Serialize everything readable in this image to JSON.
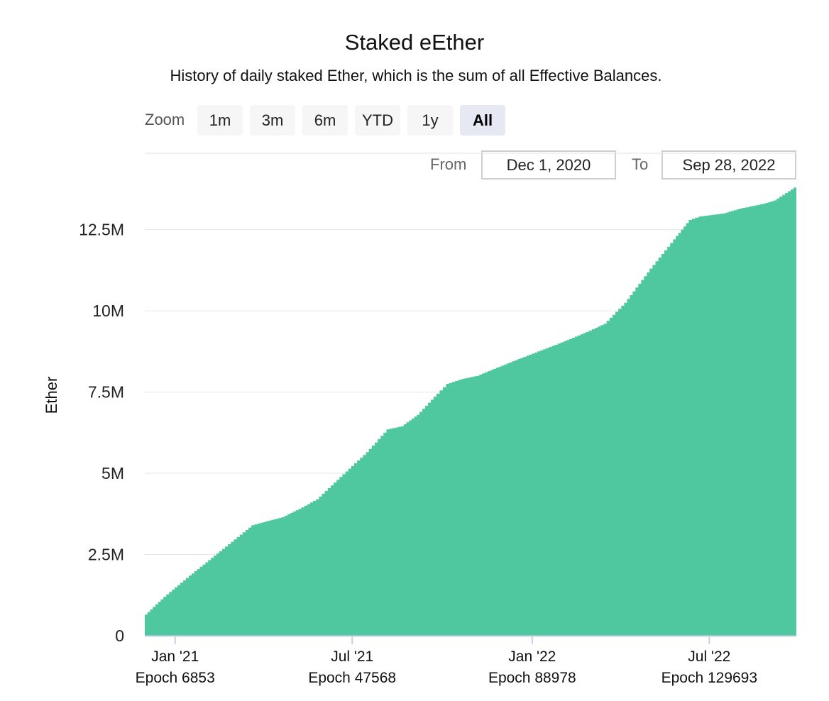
{
  "chart_data": {
    "type": "area",
    "title": "Staked eEther",
    "subtitle": "History of daily staked Ether, which is the sum of all Effective Balances.",
    "ylabel": "Ether",
    "xlabel": "",
    "ylim": [
      0,
      15200000
    ],
    "y_ticks": [
      {
        "value": 0,
        "label": "0"
      },
      {
        "value": 2500000,
        "label": "2.5M"
      },
      {
        "value": 5000000,
        "label": "5M"
      },
      {
        "value": 7500000,
        "label": "7.5M"
      },
      {
        "value": 10000000,
        "label": "10M"
      },
      {
        "value": 12500000,
        "label": "12.5M"
      }
    ],
    "x_range": [
      "2020-12-01",
      "2022-09-28"
    ],
    "x_ticks": [
      {
        "date": "2021-01-01",
        "label": "Jan '21",
        "epoch": "Epoch 6853"
      },
      {
        "date": "2021-07-01",
        "label": "Jul '21",
        "epoch": "Epoch 47568"
      },
      {
        "date": "2022-01-01",
        "label": "Jan '22",
        "epoch": "Epoch 88978"
      },
      {
        "date": "2022-07-01",
        "label": "Jul '22",
        "epoch": "Epoch 129693"
      }
    ],
    "grid": true,
    "color": "#4fc8a0",
    "series": [
      {
        "name": "",
        "points": [
          [
            "2020-12-01",
            650000
          ],
          [
            "2020-12-20",
            1200000
          ],
          [
            "2021-01-15",
            1850000
          ],
          [
            "2021-02-15",
            2600000
          ],
          [
            "2021-03-20",
            3400000
          ],
          [
            "2021-04-01",
            3500000
          ],
          [
            "2021-04-20",
            3650000
          ],
          [
            "2021-05-10",
            3950000
          ],
          [
            "2021-05-25",
            4200000
          ],
          [
            "2021-06-15",
            4800000
          ],
          [
            "2021-07-15",
            5650000
          ],
          [
            "2021-08-05",
            6350000
          ],
          [
            "2021-08-20",
            6450000
          ],
          [
            "2021-09-05",
            6800000
          ],
          [
            "2021-09-25",
            7450000
          ],
          [
            "2021-10-05",
            7750000
          ],
          [
            "2021-10-20",
            7900000
          ],
          [
            "2021-11-05",
            8000000
          ],
          [
            "2021-11-25",
            8250000
          ],
          [
            "2021-12-20",
            8550000
          ],
          [
            "2022-01-15",
            8850000
          ],
          [
            "2022-02-05",
            9100000
          ],
          [
            "2022-02-25",
            9350000
          ],
          [
            "2022-03-15",
            9600000
          ],
          [
            "2022-04-05",
            10250000
          ],
          [
            "2022-05-01",
            11300000
          ],
          [
            "2022-05-25",
            12200000
          ],
          [
            "2022-06-10",
            12800000
          ],
          [
            "2022-06-20",
            12900000
          ],
          [
            "2022-07-15",
            13000000
          ],
          [
            "2022-08-01",
            13150000
          ],
          [
            "2022-08-25",
            13300000
          ],
          [
            "2022-09-05",
            13400000
          ],
          [
            "2022-09-28",
            13850000
          ]
        ]
      }
    ]
  },
  "zoom": {
    "label": "Zoom",
    "buttons": [
      "1m",
      "3m",
      "6m",
      "YTD",
      "1y",
      "All"
    ],
    "active": "All"
  },
  "range": {
    "from_label": "From",
    "from_value": "Dec 1, 2020",
    "to_label": "To",
    "to_value": "Sep 28, 2022"
  }
}
